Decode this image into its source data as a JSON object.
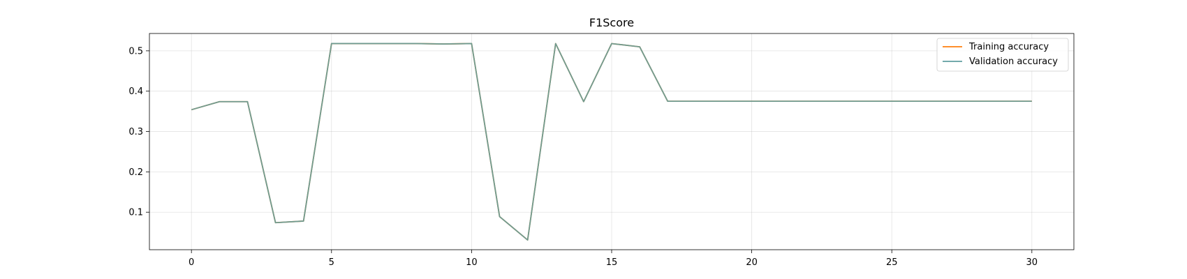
{
  "chart_data": {
    "type": "line",
    "title": "F1Score",
    "xlabel": "",
    "ylabel": "",
    "x": [
      0,
      1,
      2,
      3,
      4,
      5,
      6,
      7,
      8,
      9,
      10,
      11,
      12,
      13,
      14,
      15,
      16,
      17,
      18,
      19,
      20,
      21,
      22,
      23,
      24,
      25,
      26,
      27,
      28,
      29,
      30
    ],
    "series": [
      {
        "name": "Training accuracy",
        "color": "#ff7f0e",
        "values": [
          0.354,
          0.374,
          0.374,
          0.074,
          0.078,
          0.518,
          0.518,
          0.518,
          0.518,
          0.517,
          0.518,
          0.089,
          0.031,
          0.518,
          0.374,
          0.518,
          0.51,
          0.375,
          0.375,
          0.375,
          0.375,
          0.375,
          0.375,
          0.375,
          0.375,
          0.375,
          0.375,
          0.375,
          0.375,
          0.375,
          0.375
        ]
      },
      {
        "name": "Validation accuracy",
        "color": "#5f9ea0",
        "values": [
          0.354,
          0.374,
          0.374,
          0.074,
          0.078,
          0.518,
          0.518,
          0.518,
          0.518,
          0.517,
          0.518,
          0.089,
          0.031,
          0.518,
          0.374,
          0.518,
          0.51,
          0.375,
          0.375,
          0.375,
          0.375,
          0.375,
          0.375,
          0.375,
          0.375,
          0.375,
          0.375,
          0.375,
          0.375,
          0.375,
          0.375
        ]
      }
    ],
    "xlim": [
      -1.5,
      31.5
    ],
    "ylim": [
      0.007,
      0.543
    ],
    "xticks": [
      0,
      5,
      10,
      15,
      20,
      25,
      30
    ],
    "yticks": [
      0.1,
      0.2,
      0.3,
      0.4,
      0.5
    ],
    "xtick_labels": [
      "0",
      "5",
      "10",
      "15",
      "20",
      "25",
      "30"
    ],
    "ytick_labels": [
      "0.1",
      "0.2",
      "0.3",
      "0.4",
      "0.5"
    ],
    "grid": true,
    "legend_position": "top-right"
  }
}
